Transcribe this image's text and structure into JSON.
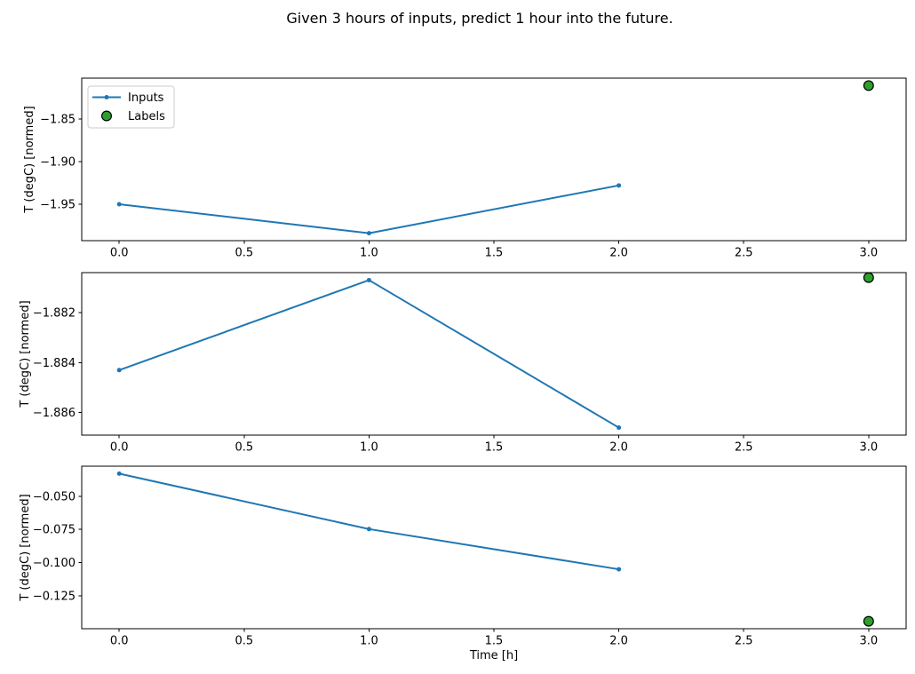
{
  "figure": {
    "title": "Given 3 hours of inputs, predict 1 hour into the future.",
    "background": "#ffffff",
    "text_color": "#000000",
    "spine_color": "#000000"
  },
  "legend": {
    "position": "upper-left-of-first-subplot",
    "items": [
      {
        "label": "Inputs",
        "type": "line-marker",
        "color": "#1f77b4"
      },
      {
        "label": "Labels",
        "type": "scatter-dot",
        "color": "#2ca02c",
        "edge_color": "#000000"
      }
    ]
  },
  "chart_data": [
    {
      "type": "line",
      "title": "",
      "xlabel": "",
      "ylabel": "T (degC) [normed]",
      "grid": false,
      "show_legend": true,
      "xlim": [
        -0.15,
        3.15
      ],
      "ylim": [
        -1.9927,
        -1.8023
      ],
      "xtick_values": [
        0.0,
        0.5,
        1.0,
        1.5,
        2.0,
        2.5,
        3.0
      ],
      "xtick_labels": [
        "0.0",
        "0.5",
        "1.0",
        "1.5",
        "2.0",
        "2.5",
        "3.0"
      ],
      "ytick_values": [
        -1.85,
        -1.9,
        -1.95
      ],
      "ytick_labels": [
        "−1.85",
        "−1.90",
        "−1.95"
      ],
      "series": [
        {
          "name": "Inputs",
          "color": "#1f77b4",
          "marker": "dot",
          "x": [
            0,
            1,
            2
          ],
          "values": [
            -1.95,
            -1.984,
            -1.928
          ]
        }
      ],
      "labels_points": {
        "name": "Labels",
        "color": "#2ca02c",
        "edge_color": "#000000",
        "x": [
          3
        ],
        "values": [
          -1.811
        ]
      }
    },
    {
      "type": "line",
      "title": "",
      "xlabel": "",
      "ylabel": "T (degC) [normed]",
      "grid": false,
      "show_legend": false,
      "xlim": [
        -0.15,
        3.15
      ],
      "ylim": [
        -1.8869,
        -1.8804
      ],
      "xtick_values": [
        0.0,
        0.5,
        1.0,
        1.5,
        2.0,
        2.5,
        3.0
      ],
      "xtick_labels": [
        "0.0",
        "0.5",
        "1.0",
        "1.5",
        "2.0",
        "2.5",
        "3.0"
      ],
      "ytick_values": [
        -1.882,
        -1.884,
        -1.886
      ],
      "ytick_labels": [
        "−1.882",
        "−1.884",
        "−1.886"
      ],
      "series": [
        {
          "name": "Inputs",
          "color": "#1f77b4",
          "marker": "dot",
          "x": [
            0,
            1,
            2
          ],
          "values": [
            -1.8843,
            -1.8807,
            -1.8866
          ]
        }
      ],
      "labels_points": {
        "name": "Labels",
        "color": "#2ca02c",
        "edge_color": "#000000",
        "x": [
          3
        ],
        "values": [
          -1.8806
        ]
      }
    },
    {
      "type": "line",
      "title": "",
      "xlabel": "Time [h]",
      "ylabel": "T (degC) [normed]",
      "grid": false,
      "show_legend": false,
      "xlim": [
        -0.15,
        3.15
      ],
      "ylim": [
        -0.1499,
        -0.0274
      ],
      "xtick_values": [
        0.0,
        0.5,
        1.0,
        1.5,
        2.0,
        2.5,
        3.0
      ],
      "xtick_labels": [
        "0.0",
        "0.5",
        "1.0",
        "1.5",
        "2.0",
        "2.5",
        "3.0"
      ],
      "ytick_values": [
        -0.05,
        -0.075,
        -0.1,
        -0.125
      ],
      "ytick_labels": [
        "−0.050",
        "−0.075",
        "−0.100",
        "−0.125"
      ],
      "series": [
        {
          "name": "Inputs",
          "color": "#1f77b4",
          "marker": "dot",
          "x": [
            0,
            1,
            2
          ],
          "values": [
            -0.033,
            -0.0748,
            -0.1051
          ]
        }
      ],
      "labels_points": {
        "name": "Labels",
        "color": "#2ca02c",
        "edge_color": "#000000",
        "x": [
          3
        ],
        "values": [
          -0.1443
        ]
      }
    }
  ]
}
